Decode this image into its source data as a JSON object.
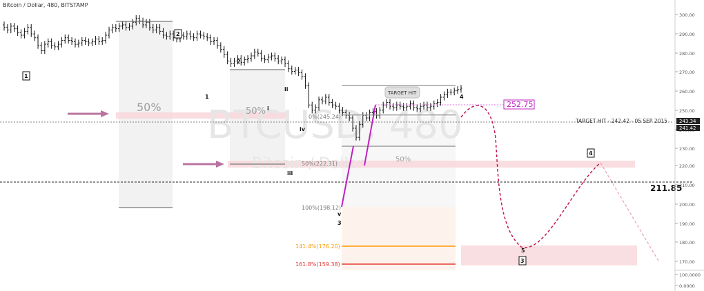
{
  "header": {
    "title": "Bitcoin / Dollar, 480, BITSTAMP"
  },
  "watermark": {
    "symbol": "BTCUSD, 480",
    "name": "Bitcoin / Dollar"
  },
  "price_axis": {
    "ticks": [
      "300.00",
      "290.00",
      "280.00",
      "270.00",
      "260.00",
      "250.00",
      "240.00",
      "230.00",
      "220.00",
      "210.00",
      "200.00",
      "190.00",
      "180.00",
      "170.00",
      "100.0000",
      "0.0000"
    ],
    "price_label_1": "243.34",
    "price_label_2": "241.42"
  },
  "annotations": {
    "target_hit_bubble": "TARGET HIT",
    "target_hit_line": "TARGET HIT - 242.42 - 05 SEP 2015",
    "target_price": "252.75",
    "support_level": "211.85",
    "zone_50_a": "50%",
    "zone_50_b": "50%",
    "zone_50_c": "50%",
    "fib_0": "0%(245.24)",
    "fib_50": "50%(222.31)",
    "fib_100": "100%(198.12)",
    "fib_141": "141.4%(176.20)",
    "fib_161": "161.8%(159.38)",
    "wave_labels": [
      "1",
      "2",
      "1",
      "2",
      "i",
      "ii",
      "iii",
      "iv",
      "v",
      "3",
      "4",
      "5",
      "4",
      "3"
    ]
  },
  "colors": {
    "candle": "#111111",
    "fib_orange": "#ff9800",
    "fib_red": "#e53935",
    "target_magenta": "#d633d6",
    "arrow": "#b9739f",
    "zone_pink": "#f8d7da",
    "zone_gray": "#f2f2f2",
    "projection": "#c2185b"
  },
  "chart_data": {
    "type": "candlestick",
    "title": "Bitcoin / Dollar, 480, BITSTAMP",
    "y_unit": "USD",
    "ylim": [
      78,
      304
    ],
    "closes": [
      290,
      288,
      291,
      289,
      286,
      284,
      287,
      290,
      285,
      282,
      276,
      272,
      277,
      279,
      276,
      275,
      277,
      280,
      282,
      280,
      279,
      277,
      278,
      280,
      279,
      278,
      279,
      281,
      279,
      280,
      284,
      288,
      290,
      289,
      291,
      292,
      290,
      291,
      294,
      297,
      295,
      292,
      294,
      290,
      288,
      290,
      287,
      284,
      283,
      285,
      282,
      281,
      284,
      283,
      285,
      283,
      282,
      285,
      284,
      283,
      282,
      279,
      280,
      276,
      273,
      269,
      264,
      262,
      264,
      266,
      263,
      265,
      266,
      268,
      271,
      270,
      266,
      265,
      267,
      268,
      266,
      264,
      265,
      262,
      258,
      256,
      257,
      255,
      252,
      245,
      230,
      226,
      228,
      234,
      233,
      236,
      232,
      230,
      229,
      226,
      224,
      222,
      220,
      212,
      205,
      215,
      222,
      220,
      224,
      225,
      222,
      226,
      230,
      232,
      229,
      228,
      230,
      229,
      228,
      229,
      231,
      228,
      227,
      229,
      230,
      228,
      229,
      231,
      232,
      236,
      238,
      240,
      240,
      241,
      242,
      243
    ],
    "levels": [
      {
        "name": "target",
        "value": 252.75
      },
      {
        "name": "fib 0%",
        "value": 245.24
      },
      {
        "name": "target hit",
        "value": 242.42
      },
      {
        "name": "fib 50%",
        "value": 222.31
      },
      {
        "name": "support",
        "value": 211.85
      },
      {
        "name": "fib 100%",
        "value": 198.12
      },
      {
        "name": "fib 141.4%",
        "value": 176.2
      },
      {
        "name": "fib 161.8%",
        "value": 159.38
      }
    ]
  }
}
